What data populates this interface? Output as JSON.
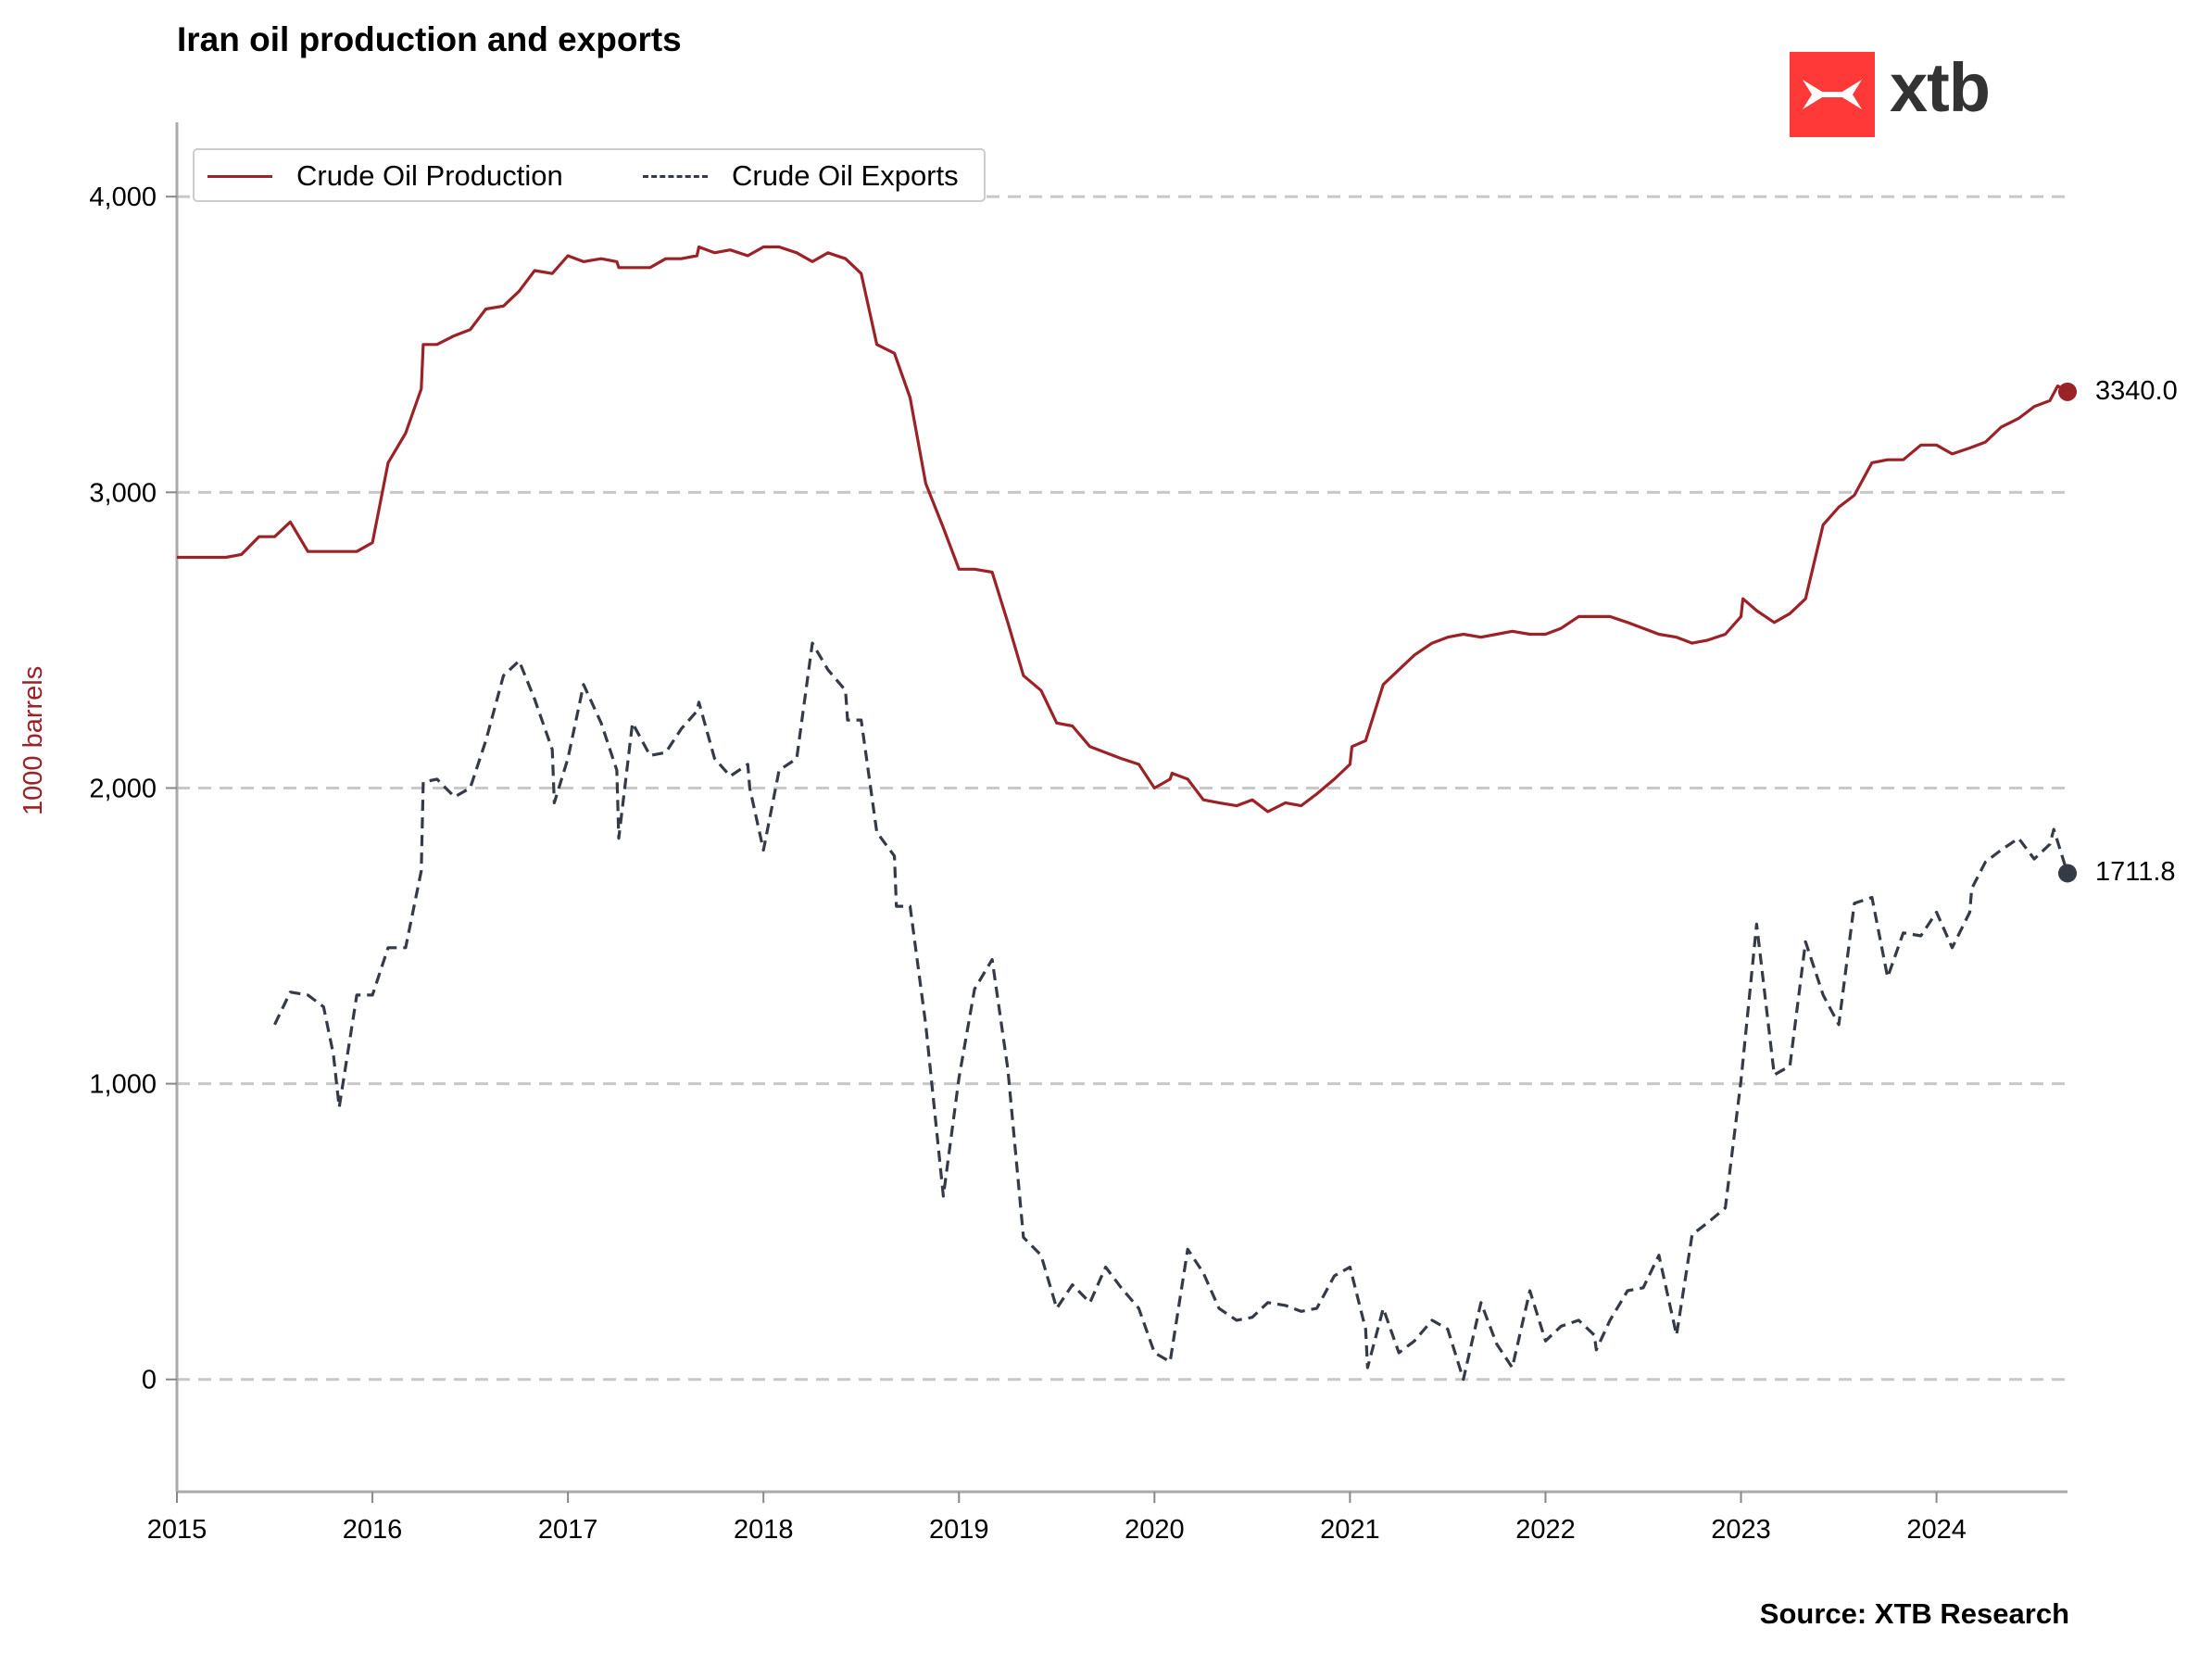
{
  "title": "Iran oil production and exports",
  "source": "Source: XTB Research",
  "logo": {
    "text": "xtb",
    "color": "#ff3838"
  },
  "chart_data": {
    "type": "line",
    "ylabel": "1000 barrels",
    "xlabel": "",
    "ylim": [
      -380,
      4220
    ],
    "xlim": [
      2015.0,
      2024.67
    ],
    "yticks": [
      0,
      1000,
      2000,
      3000,
      4000
    ],
    "ytick_labels": [
      "0",
      "1,000",
      "2,000",
      "3,000",
      "4,000"
    ],
    "xticks": [
      2015,
      2016,
      2017,
      2018,
      2019,
      2020,
      2021,
      2022,
      2023,
      2024
    ],
    "xtick_labels": [
      "2015",
      "2016",
      "2017",
      "2018",
      "2019",
      "2020",
      "2021",
      "2022",
      "2023",
      "2024"
    ],
    "grid": "horizontal dashed",
    "legend": "top-left",
    "series": [
      {
        "name": "Crude Oil Production",
        "color": "#9b2226",
        "dash": "solid",
        "end_label": "3340.0",
        "end_value": 3340.0,
        "points": [
          [
            2015.0,
            2780
          ],
          [
            2015.25,
            2780
          ],
          [
            2015.33,
            2790
          ],
          [
            2015.42,
            2850
          ],
          [
            2015.5,
            2850
          ],
          [
            2015.58,
            2900
          ],
          [
            2015.67,
            2800
          ],
          [
            2015.83,
            2800
          ],
          [
            2015.92,
            2800
          ],
          [
            2016.0,
            2830
          ],
          [
            2016.08,
            3100
          ],
          [
            2016.17,
            3200
          ],
          [
            2016.25,
            3350
          ],
          [
            2016.26,
            3500
          ],
          [
            2016.33,
            3500
          ],
          [
            2016.42,
            3530
          ],
          [
            2016.5,
            3550
          ],
          [
            2016.58,
            3620
          ],
          [
            2016.67,
            3630
          ],
          [
            2016.75,
            3680
          ],
          [
            2016.83,
            3750
          ],
          [
            2016.92,
            3740
          ],
          [
            2017.0,
            3800
          ],
          [
            2017.08,
            3780
          ],
          [
            2017.17,
            3790
          ],
          [
            2017.25,
            3780
          ],
          [
            2017.26,
            3760
          ],
          [
            2017.33,
            3760
          ],
          [
            2017.42,
            3760
          ],
          [
            2017.5,
            3790
          ],
          [
            2017.58,
            3790
          ],
          [
            2017.66,
            3800
          ],
          [
            2017.67,
            3830
          ],
          [
            2017.75,
            3810
          ],
          [
            2017.83,
            3820
          ],
          [
            2017.92,
            3800
          ],
          [
            2018.0,
            3830
          ],
          [
            2018.08,
            3830
          ],
          [
            2018.17,
            3810
          ],
          [
            2018.25,
            3780
          ],
          [
            2018.33,
            3810
          ],
          [
            2018.42,
            3790
          ],
          [
            2018.5,
            3740
          ],
          [
            2018.58,
            3500
          ],
          [
            2018.67,
            3470
          ],
          [
            2018.75,
            3320
          ],
          [
            2018.83,
            3030
          ],
          [
            2018.92,
            2880
          ],
          [
            2019.0,
            2740
          ],
          [
            2019.08,
            2740
          ],
          [
            2019.17,
            2730
          ],
          [
            2019.25,
            2560
          ],
          [
            2019.33,
            2380
          ],
          [
            2019.42,
            2330
          ],
          [
            2019.5,
            2220
          ],
          [
            2019.58,
            2210
          ],
          [
            2019.67,
            2140
          ],
          [
            2019.75,
            2120
          ],
          [
            2019.83,
            2100
          ],
          [
            2019.92,
            2080
          ],
          [
            2020.0,
            2000
          ],
          [
            2020.08,
            2030
          ],
          [
            2020.09,
            2050
          ],
          [
            2020.17,
            2030
          ],
          [
            2020.25,
            1960
          ],
          [
            2020.33,
            1950
          ],
          [
            2020.42,
            1940
          ],
          [
            2020.5,
            1960
          ],
          [
            2020.58,
            1920
          ],
          [
            2020.67,
            1950
          ],
          [
            2020.75,
            1940
          ],
          [
            2020.83,
            1980
          ],
          [
            2020.92,
            2030
          ],
          [
            2021.0,
            2080
          ],
          [
            2021.01,
            2140
          ],
          [
            2021.08,
            2160
          ],
          [
            2021.17,
            2350
          ],
          [
            2021.25,
            2400
          ],
          [
            2021.33,
            2450
          ],
          [
            2021.42,
            2490
          ],
          [
            2021.5,
            2510
          ],
          [
            2021.58,
            2520
          ],
          [
            2021.67,
            2510
          ],
          [
            2021.75,
            2520
          ],
          [
            2021.83,
            2530
          ],
          [
            2021.92,
            2520
          ],
          [
            2022.0,
            2520
          ],
          [
            2022.08,
            2540
          ],
          [
            2022.17,
            2580
          ],
          [
            2022.25,
            2580
          ],
          [
            2022.33,
            2580
          ],
          [
            2022.42,
            2560
          ],
          [
            2022.5,
            2540
          ],
          [
            2022.58,
            2520
          ],
          [
            2022.67,
            2510
          ],
          [
            2022.75,
            2490
          ],
          [
            2022.83,
            2500
          ],
          [
            2022.92,
            2520
          ],
          [
            2023.0,
            2580
          ],
          [
            2023.01,
            2640
          ],
          [
            2023.08,
            2600
          ],
          [
            2023.17,
            2560
          ],
          [
            2023.25,
            2590
          ],
          [
            2023.33,
            2640
          ],
          [
            2023.42,
            2890
          ],
          [
            2023.5,
            2950
          ],
          [
            2023.58,
            2990
          ],
          [
            2023.67,
            3100
          ],
          [
            2023.75,
            3110
          ],
          [
            2023.83,
            3110
          ],
          [
            2023.92,
            3160
          ],
          [
            2024.0,
            3160
          ],
          [
            2024.08,
            3130
          ],
          [
            2024.17,
            3150
          ],
          [
            2024.25,
            3170
          ],
          [
            2024.33,
            3220
          ],
          [
            2024.42,
            3250
          ],
          [
            2024.5,
            3290
          ],
          [
            2024.58,
            3310
          ],
          [
            2024.62,
            3360
          ],
          [
            2024.67,
            3340
          ]
        ]
      },
      {
        "name": "Crude Oil Exports",
        "color": "#343a46",
        "dash": "dashed",
        "end_label": "1711.8",
        "end_value": 1711.8,
        "points": [
          [
            2015.5,
            1200
          ],
          [
            2015.58,
            1310
          ],
          [
            2015.67,
            1300
          ],
          [
            2015.75,
            1260
          ],
          [
            2015.8,
            1100
          ],
          [
            2015.83,
            920
          ],
          [
            2015.92,
            1300
          ],
          [
            2016.0,
            1300
          ],
          [
            2016.08,
            1460
          ],
          [
            2016.17,
            1460
          ],
          [
            2016.25,
            1720
          ],
          [
            2016.26,
            2020
          ],
          [
            2016.33,
            2030
          ],
          [
            2016.42,
            1970
          ],
          [
            2016.5,
            2000
          ],
          [
            2016.58,
            2160
          ],
          [
            2016.67,
            2380
          ],
          [
            2016.75,
            2430
          ],
          [
            2016.83,
            2300
          ],
          [
            2016.92,
            2130
          ],
          [
            2016.93,
            1950
          ],
          [
            2017.0,
            2100
          ],
          [
            2017.08,
            2350
          ],
          [
            2017.17,
            2220
          ],
          [
            2017.25,
            2060
          ],
          [
            2017.26,
            1830
          ],
          [
            2017.33,
            2220
          ],
          [
            2017.42,
            2110
          ],
          [
            2017.5,
            2120
          ],
          [
            2017.58,
            2200
          ],
          [
            2017.66,
            2260
          ],
          [
            2017.67,
            2290
          ],
          [
            2017.75,
            2100
          ],
          [
            2017.83,
            2040
          ],
          [
            2017.92,
            2080
          ],
          [
            2017.93,
            2000
          ],
          [
            2018.0,
            1790
          ],
          [
            2018.08,
            2060
          ],
          [
            2018.17,
            2100
          ],
          [
            2018.25,
            2490
          ],
          [
            2018.33,
            2400
          ],
          [
            2018.42,
            2330
          ],
          [
            2018.43,
            2230
          ],
          [
            2018.5,
            2230
          ],
          [
            2018.58,
            1850
          ],
          [
            2018.67,
            1770
          ],
          [
            2018.68,
            1600
          ],
          [
            2018.75,
            1600
          ],
          [
            2018.83,
            1200
          ],
          [
            2018.92,
            620
          ],
          [
            2019.0,
            1020
          ],
          [
            2019.08,
            1320
          ],
          [
            2019.17,
            1420
          ],
          [
            2019.25,
            1050
          ],
          [
            2019.33,
            480
          ],
          [
            2019.42,
            420
          ],
          [
            2019.5,
            240
          ],
          [
            2019.58,
            320
          ],
          [
            2019.67,
            260
          ],
          [
            2019.75,
            380
          ],
          [
            2019.83,
            310
          ],
          [
            2019.92,
            240
          ],
          [
            2020.0,
            90
          ],
          [
            2020.08,
            60
          ],
          [
            2020.17,
            440
          ],
          [
            2020.25,
            360
          ],
          [
            2020.33,
            240
          ],
          [
            2020.42,
            200
          ],
          [
            2020.5,
            210
          ],
          [
            2020.58,
            260
          ],
          [
            2020.67,
            250
          ],
          [
            2020.75,
            230
          ],
          [
            2020.83,
            240
          ],
          [
            2020.92,
            350
          ],
          [
            2021.0,
            380
          ],
          [
            2021.08,
            170
          ],
          [
            2021.09,
            40
          ],
          [
            2021.17,
            240
          ],
          [
            2021.25,
            90
          ],
          [
            2021.33,
            130
          ],
          [
            2021.42,
            200
          ],
          [
            2021.5,
            170
          ],
          [
            2021.58,
            0
          ],
          [
            2021.67,
            260
          ],
          [
            2021.75,
            120
          ],
          [
            2021.83,
            40
          ],
          [
            2021.92,
            300
          ],
          [
            2022.0,
            130
          ],
          [
            2022.08,
            180
          ],
          [
            2022.17,
            200
          ],
          [
            2022.25,
            150
          ],
          [
            2022.26,
            100
          ],
          [
            2022.33,
            200
          ],
          [
            2022.42,
            300
          ],
          [
            2022.5,
            310
          ],
          [
            2022.58,
            420
          ],
          [
            2022.67,
            150
          ],
          [
            2022.75,
            490
          ],
          [
            2022.83,
            530
          ],
          [
            2022.92,
            580
          ],
          [
            2023.0,
            1010
          ],
          [
            2023.08,
            1540
          ],
          [
            2023.17,
            1030
          ],
          [
            2023.25,
            1060
          ],
          [
            2023.33,
            1480
          ],
          [
            2023.42,
            1300
          ],
          [
            2023.5,
            1200
          ],
          [
            2023.58,
            1610
          ],
          [
            2023.67,
            1630
          ],
          [
            2023.75,
            1360
          ],
          [
            2023.83,
            1510
          ],
          [
            2023.92,
            1500
          ],
          [
            2024.0,
            1580
          ],
          [
            2024.08,
            1460
          ],
          [
            2024.17,
            1580
          ],
          [
            2024.18,
            1660
          ],
          [
            2024.25,
            1750
          ],
          [
            2024.33,
            1790
          ],
          [
            2024.42,
            1830
          ],
          [
            2024.5,
            1760
          ],
          [
            2024.58,
            1810
          ],
          [
            2024.6,
            1860
          ],
          [
            2024.67,
            1712
          ]
        ]
      }
    ]
  }
}
